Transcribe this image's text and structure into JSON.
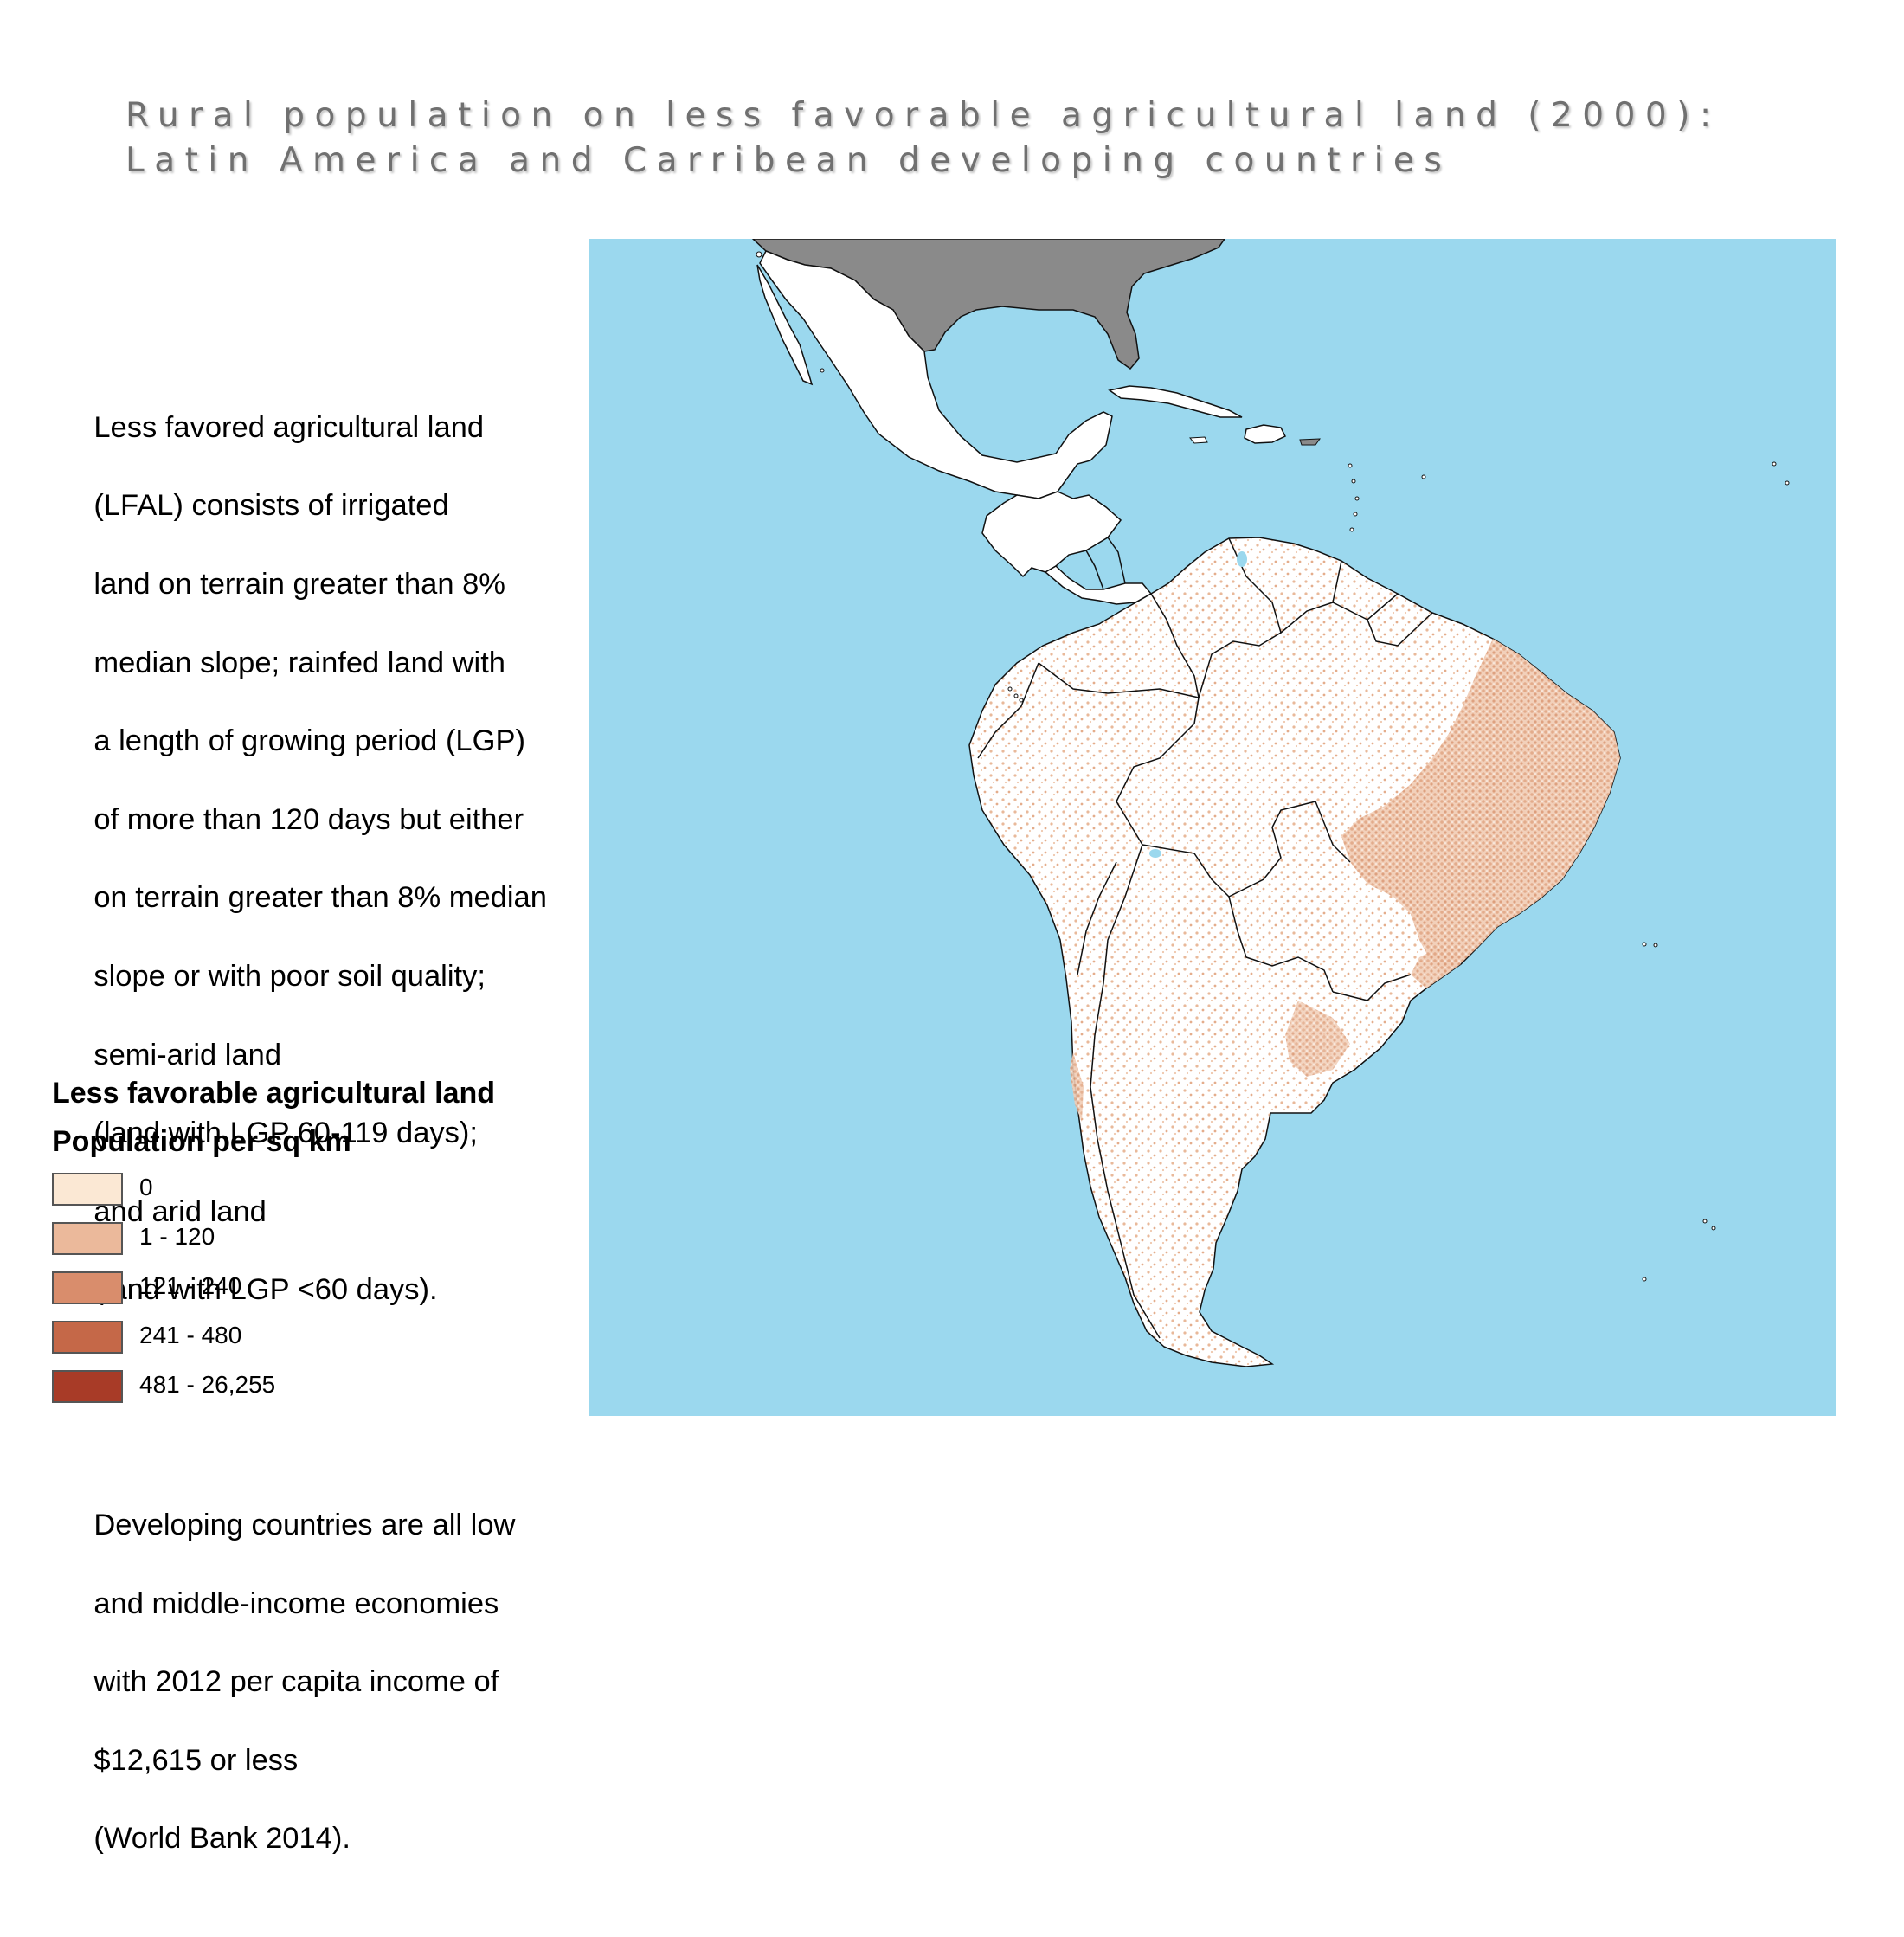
{
  "title": {
    "line1": "Rural population on less favorable agricultural land (2000):",
    "line2": "Latin America and Carribean developing countries"
  },
  "description": {
    "paragraph1_lines": [
      "Less favored agricultural land",
      "(LFAL) consists of irrigated",
      "land on terrain greater than 8%",
      "median slope; rainfed land with",
      "a length of growing period (LGP)",
      "of more than 120 days but either",
      "on terrain greater than 8% median",
      "slope or with poor soil quality;",
      "semi-arid land",
      "(land with LGP 60-119 days);",
      "and arid land",
      "(land with LGP <60 days)."
    ],
    "paragraph2_lines": [
      "Developing countries are all low",
      "and middle-income economies",
      "with 2012 per capita income of",
      "$12,615 or less",
      "(World Bank 2014)."
    ]
  },
  "legend": {
    "title": "Less favorable agricultural land",
    "subtitle": "Population per sq km",
    "items": [
      {
        "label": "0",
        "color": "#fbe8d4"
      },
      {
        "label": "1 - 120",
        "color": "#ebb99b"
      },
      {
        "label": "121 - 240",
        "color": "#d98d6c"
      },
      {
        "label": "241 - 480",
        "color": "#c56848"
      },
      {
        "label": "481 - 26,255",
        "color": "#a83b27"
      }
    ]
  },
  "map": {
    "ocean_color": "#9bd8ee",
    "land_color": "#ffffff",
    "non_study_land_color": "#8a8a8a",
    "border_color": "#111111"
  }
}
